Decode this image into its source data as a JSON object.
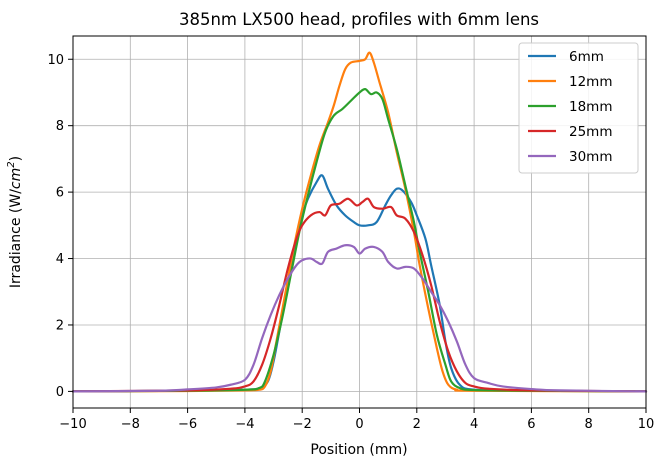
{
  "chart_data": {
    "type": "line",
    "title": "385nm LX500 head, profiles with 6mm lens",
    "xlabel": "Position (mm)",
    "ylabel_prefix": "Irradiance (W/",
    "ylabel_unit": "cm",
    "ylabel_exp": "2",
    "ylabel_suffix": ")",
    "xlim": [
      -10,
      10
    ],
    "ylim": [
      -0.5,
      10.7
    ],
    "xticks": [
      -10,
      -8,
      -6,
      -4,
      -2,
      0,
      2,
      4,
      6,
      8,
      10
    ],
    "xtick_labels": [
      "−10",
      "−8",
      "−6",
      "−4",
      "−2",
      "0",
      "2",
      "4",
      "6",
      "8",
      "10"
    ],
    "yticks": [
      0,
      2,
      4,
      6,
      8,
      10
    ],
    "ytick_labels": [
      "0",
      "2",
      "4",
      "6",
      "8",
      "10"
    ],
    "grid": true,
    "legend_position": "top-right",
    "series": [
      {
        "name": "6mm",
        "color": "#1f77b4",
        "points": [
          [
            -10,
            0
          ],
          [
            -6,
            0.02
          ],
          [
            -4,
            0.05
          ],
          [
            -3.5,
            0.1
          ],
          [
            -3.2,
            0.3
          ],
          [
            -3,
            0.9
          ],
          [
            -2.8,
            1.8
          ],
          [
            -2.5,
            3.2
          ],
          [
            -2.2,
            4.5
          ],
          [
            -2,
            5.3
          ],
          [
            -1.8,
            5.8
          ],
          [
            -1.5,
            6.3
          ],
          [
            -1.3,
            6.5
          ],
          [
            -1.1,
            6.1
          ],
          [
            -0.8,
            5.6
          ],
          [
            -0.5,
            5.3
          ],
          [
            -0.2,
            5.1
          ],
          [
            0,
            5.0
          ],
          [
            0.3,
            5.0
          ],
          [
            0.6,
            5.1
          ],
          [
            0.9,
            5.6
          ],
          [
            1.1,
            5.9
          ],
          [
            1.3,
            6.1
          ],
          [
            1.5,
            6.05
          ],
          [
            1.8,
            5.7
          ],
          [
            2,
            5.3
          ],
          [
            2.3,
            4.6
          ],
          [
            2.5,
            3.8
          ],
          [
            2.8,
            2.6
          ],
          [
            3,
            1.5
          ],
          [
            3.2,
            0.7
          ],
          [
            3.5,
            0.2
          ],
          [
            4,
            0.05
          ],
          [
            6,
            0.02
          ],
          [
            10,
            0
          ]
        ]
      },
      {
        "name": "12mm",
        "color": "#ff7f0e",
        "points": [
          [
            -10,
            0
          ],
          [
            -6,
            0.01
          ],
          [
            -4,
            0.03
          ],
          [
            -3.5,
            0.05
          ],
          [
            -3.3,
            0.15
          ],
          [
            -3.1,
            0.6
          ],
          [
            -2.9,
            1.5
          ],
          [
            -2.6,
            2.9
          ],
          [
            -2.3,
            4.3
          ],
          [
            -2,
            5.5
          ],
          [
            -1.7,
            6.5
          ],
          [
            -1.4,
            7.4
          ],
          [
            -1.1,
            8.1
          ],
          [
            -0.9,
            8.6
          ],
          [
            -0.7,
            9.2
          ],
          [
            -0.5,
            9.7
          ],
          [
            -0.3,
            9.9
          ],
          [
            0,
            9.95
          ],
          [
            0.2,
            10.0
          ],
          [
            0.35,
            10.2
          ],
          [
            0.5,
            9.9
          ],
          [
            0.7,
            9.3
          ],
          [
            1,
            8.4
          ],
          [
            1.3,
            7.2
          ],
          [
            1.6,
            6.1
          ],
          [
            1.9,
            4.8
          ],
          [
            2.1,
            3.8
          ],
          [
            2.4,
            2.5
          ],
          [
            2.7,
            1.3
          ],
          [
            2.9,
            0.6
          ],
          [
            3.1,
            0.2
          ],
          [
            3.4,
            0.05
          ],
          [
            4,
            0.02
          ],
          [
            10,
            0
          ]
        ]
      },
      {
        "name": "18mm",
        "color": "#2ca02c",
        "points": [
          [
            -10,
            0
          ],
          [
            -6,
            0.02
          ],
          [
            -4,
            0.05
          ],
          [
            -3.5,
            0.1
          ],
          [
            -3.3,
            0.3
          ],
          [
            -3,
            1.1
          ],
          [
            -2.7,
            2.2
          ],
          [
            -2.4,
            3.5
          ],
          [
            -2.1,
            4.8
          ],
          [
            -1.8,
            5.9
          ],
          [
            -1.5,
            6.9
          ],
          [
            -1.2,
            7.8
          ],
          [
            -0.9,
            8.3
          ],
          [
            -0.6,
            8.5
          ],
          [
            -0.3,
            8.75
          ],
          [
            0,
            9.0
          ],
          [
            0.2,
            9.1
          ],
          [
            0.4,
            8.95
          ],
          [
            0.6,
            9.0
          ],
          [
            0.8,
            8.8
          ],
          [
            1,
            8.2
          ],
          [
            1.3,
            7.3
          ],
          [
            1.6,
            6.2
          ],
          [
            1.9,
            5.1
          ],
          [
            2.1,
            4.2
          ],
          [
            2.4,
            3.0
          ],
          [
            2.7,
            1.7
          ],
          [
            3,
            0.8
          ],
          [
            3.2,
            0.3
          ],
          [
            3.5,
            0.1
          ],
          [
            4,
            0.04
          ],
          [
            6,
            0.02
          ],
          [
            10,
            0
          ]
        ]
      },
      {
        "name": "25mm",
        "color": "#d62728",
        "points": [
          [
            -10,
            0
          ],
          [
            -6,
            0.03
          ],
          [
            -4.5,
            0.08
          ],
          [
            -4,
            0.15
          ],
          [
            -3.7,
            0.3
          ],
          [
            -3.4,
            0.8
          ],
          [
            -3.1,
            1.6
          ],
          [
            -2.8,
            2.6
          ],
          [
            -2.5,
            3.7
          ],
          [
            -2.2,
            4.6
          ],
          [
            -2,
            5.0
          ],
          [
            -1.7,
            5.3
          ],
          [
            -1.4,
            5.4
          ],
          [
            -1.2,
            5.3
          ],
          [
            -1,
            5.6
          ],
          [
            -0.7,
            5.65
          ],
          [
            -0.4,
            5.8
          ],
          [
            -0.1,
            5.6
          ],
          [
            0.1,
            5.7
          ],
          [
            0.3,
            5.8
          ],
          [
            0.5,
            5.55
          ],
          [
            0.8,
            5.5
          ],
          [
            1.1,
            5.55
          ],
          [
            1.3,
            5.3
          ],
          [
            1.6,
            5.2
          ],
          [
            1.9,
            4.8
          ],
          [
            2.2,
            4.1
          ],
          [
            2.5,
            3.2
          ],
          [
            2.8,
            2.1
          ],
          [
            3.1,
            1.2
          ],
          [
            3.4,
            0.6
          ],
          [
            3.7,
            0.25
          ],
          [
            4,
            0.15
          ],
          [
            4.5,
            0.08
          ],
          [
            6,
            0.03
          ],
          [
            10,
            0
          ]
        ]
      },
      {
        "name": "30mm",
        "color": "#9467bd",
        "points": [
          [
            -10,
            0
          ],
          [
            -7,
            0.02
          ],
          [
            -6,
            0.06
          ],
          [
            -5,
            0.12
          ],
          [
            -4.5,
            0.2
          ],
          [
            -4,
            0.35
          ],
          [
            -3.7,
            0.8
          ],
          [
            -3.4,
            1.6
          ],
          [
            -3.1,
            2.3
          ],
          [
            -2.8,
            2.9
          ],
          [
            -2.5,
            3.4
          ],
          [
            -2.2,
            3.8
          ],
          [
            -2,
            3.95
          ],
          [
            -1.7,
            4.0
          ],
          [
            -1.5,
            3.9
          ],
          [
            -1.3,
            3.85
          ],
          [
            -1.1,
            4.2
          ],
          [
            -0.8,
            4.3
          ],
          [
            -0.5,
            4.4
          ],
          [
            -0.2,
            4.35
          ],
          [
            0,
            4.15
          ],
          [
            0.2,
            4.3
          ],
          [
            0.5,
            4.35
          ],
          [
            0.8,
            4.2
          ],
          [
            1.0,
            3.9
          ],
          [
            1.3,
            3.7
          ],
          [
            1.6,
            3.75
          ],
          [
            1.9,
            3.7
          ],
          [
            2.2,
            3.4
          ],
          [
            2.5,
            3.0
          ],
          [
            2.8,
            2.6
          ],
          [
            3.1,
            2.1
          ],
          [
            3.4,
            1.5
          ],
          [
            3.7,
            0.8
          ],
          [
            4,
            0.4
          ],
          [
            4.5,
            0.25
          ],
          [
            5,
            0.15
          ],
          [
            6,
            0.07
          ],
          [
            7,
            0.03
          ],
          [
            10,
            0
          ]
        ]
      }
    ]
  }
}
